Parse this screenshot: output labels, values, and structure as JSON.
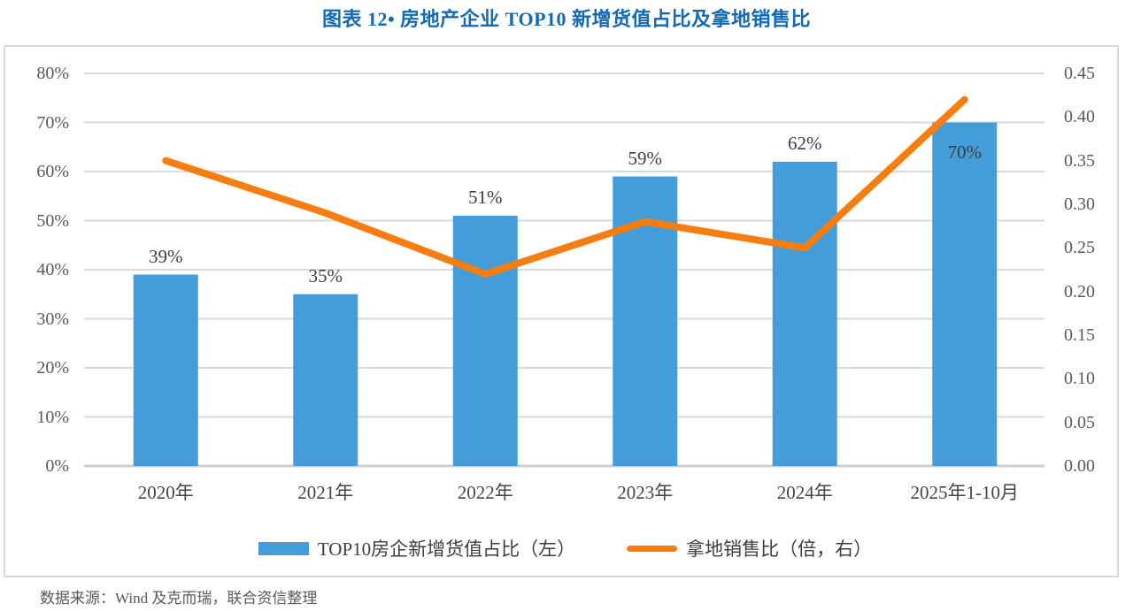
{
  "title": "图表 12• 房地产企业 TOP10 新增货值占比及拿地销售比",
  "source": "数据来源：Wind 及克而瑞，联合资信整理",
  "colors": {
    "title": "#1469b5",
    "bar": "#449dd8",
    "line": "#f87d10",
    "grid": "#dadada",
    "axis_line": "#cfcfcf",
    "tick_text": "#595959",
    "label_text": "#3d3d3d"
  },
  "chart_data": {
    "type": "bar+line combo",
    "title": "图表 12• 房地产企业 TOP10 新增货值占比及拿地销售比",
    "categories": [
      "2020年",
      "2021年",
      "2022年",
      "2023年",
      "2024年",
      "2025年1-10月"
    ],
    "series": [
      {
        "name": "TOP10房企新增货值占比（左）",
        "type": "bar",
        "axis": "left",
        "values": [
          39,
          35,
          51,
          59,
          62,
          70
        ],
        "labels": [
          "39%",
          "35%",
          "51%",
          "59%",
          "62%",
          "70%"
        ],
        "label_positions": [
          "above",
          "above",
          "above",
          "above",
          "above",
          "inside"
        ]
      },
      {
        "name": "拿地销售比（倍，右）",
        "type": "line",
        "axis": "right",
        "values": [
          0.35,
          0.29,
          0.22,
          0.28,
          0.25,
          0.42
        ]
      }
    ],
    "left_axis": {
      "min": 0,
      "max": 80,
      "step": 10,
      "ticks": [
        "0%",
        "10%",
        "20%",
        "30%",
        "40%",
        "50%",
        "60%",
        "70%",
        "80%"
      ]
    },
    "right_axis": {
      "min": 0,
      "max": 0.45,
      "step": 0.05,
      "ticks": [
        "0.00",
        "0.05",
        "0.10",
        "0.15",
        "0.20",
        "0.25",
        "0.30",
        "0.35",
        "0.40",
        "0.45"
      ]
    },
    "grid": true,
    "legend_position": "bottom"
  }
}
